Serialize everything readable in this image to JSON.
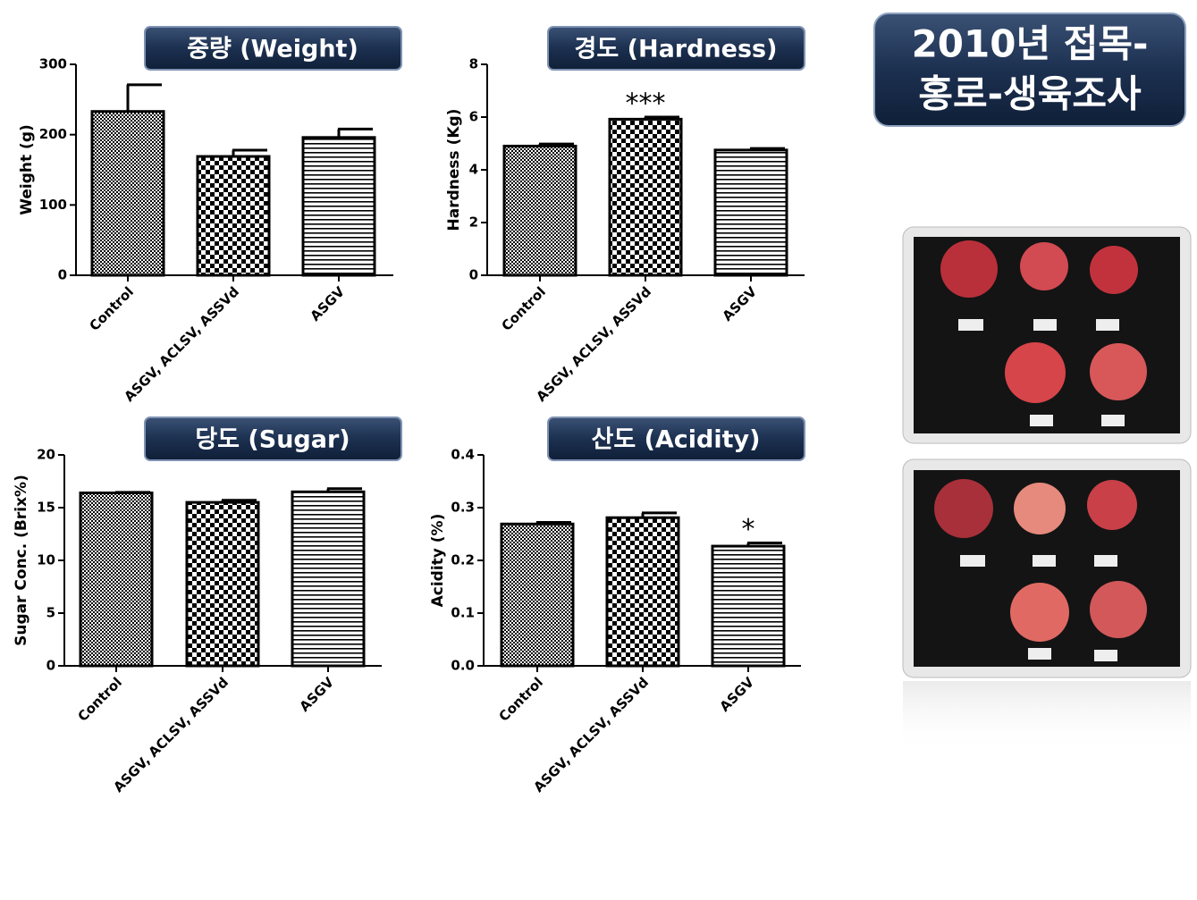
{
  "slide_title": [
    "2010년 접목-",
    "홍로-생육조사"
  ],
  "chart_data": [
    {
      "type": "bar",
      "title": "중량 (Weight)",
      "ylabel": "Weight (g)",
      "categories": [
        "Control",
        "ASGV, ACLSV, ASSVd",
        "ASGV"
      ],
      "values": [
        233,
        169,
        196
      ],
      "errors": [
        38,
        9,
        12
      ],
      "significance": [
        null,
        null,
        null
      ],
      "patterns": [
        "fine-check",
        "checker",
        "hlines"
      ],
      "ylim": [
        0,
        300
      ],
      "yticks": [
        0,
        100,
        200,
        300
      ]
    },
    {
      "type": "bar",
      "title": "경도 (Hardness)",
      "ylabel": "Hardness (Kg)",
      "categories": [
        "Control",
        "ASGV, ACLSV, ASSVd",
        "ASGV"
      ],
      "values": [
        4.9,
        5.92,
        4.75
      ],
      "errors": [
        0.08,
        0.08,
        0.06
      ],
      "significance": [
        null,
        "***",
        null
      ],
      "patterns": [
        "fine-check",
        "checker",
        "hlines"
      ],
      "ylim": [
        0,
        8
      ],
      "yticks": [
        0,
        2,
        4,
        6,
        8
      ]
    },
    {
      "type": "bar",
      "title": "당도 (Sugar)",
      "ylabel": "Sugar Conc. (Brix%)",
      "categories": [
        "Control",
        "ASGV, ACLSV, ASSVd",
        "ASGV"
      ],
      "values": [
        16.4,
        15.5,
        16.5
      ],
      "errors": [
        0.05,
        0.2,
        0.3
      ],
      "significance": [
        null,
        null,
        null
      ],
      "patterns": [
        "fine-check",
        "checker",
        "hlines"
      ],
      "ylim": [
        0,
        20
      ],
      "yticks": [
        0,
        5,
        10,
        15,
        20
      ]
    },
    {
      "type": "bar",
      "title": "산도 (Acidity)",
      "ylabel": "Acidity (%)",
      "categories": [
        "Control",
        "ASGV, ACLSV, ASSVd",
        "ASGV"
      ],
      "values": [
        0.269,
        0.281,
        0.227
      ],
      "errors": [
        0.003,
        0.009,
        0.006
      ],
      "significance": [
        null,
        null,
        "*"
      ],
      "patterns": [
        "fine-check",
        "checker",
        "hlines"
      ],
      "ylim": [
        0,
        0.4
      ],
      "yticks": [
        {
          "value": 0,
          "label": "0.0"
        },
        0.1,
        0.2,
        0.3,
        0.4
      ]
    }
  ]
}
